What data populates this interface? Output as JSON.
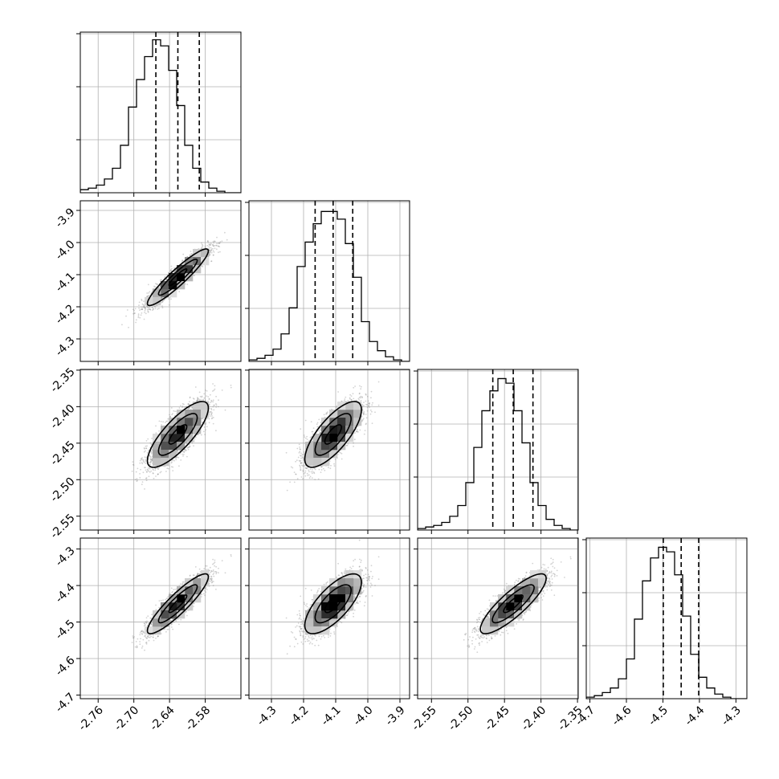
{
  "chart_data": {
    "type": "corner",
    "n_params": 4,
    "quantiles": [
      0.16,
      0.5,
      0.84
    ],
    "params": [
      {
        "ticks": [
          "-2.76",
          "-2.70",
          "-2.64",
          "-2.58"
        ],
        "tick_values": [
          -2.76,
          -2.7,
          -2.64,
          -2.58
        ],
        "range": [
          -2.79,
          -2.52
        ],
        "median": -2.626,
        "q16": -2.663,
        "q84": -2.59,
        "hist_counts": [
          0.02,
          0.03,
          0.05,
          0.09,
          0.16,
          0.31,
          0.56,
          0.74,
          0.89,
          1.0,
          0.96,
          0.8,
          0.57,
          0.31,
          0.16,
          0.07,
          0.03,
          0.01,
          0.0,
          0.0
        ]
      },
      {
        "ticks": [
          "-4.3",
          "-4.2",
          "-4.1",
          "-4.0",
          "-3.9"
        ],
        "tick_values": [
          -4.3,
          -4.2,
          -4.1,
          -4.0,
          -3.9
        ],
        "range": [
          -4.37,
          -3.87
        ],
        "median": -4.108,
        "q16": -4.164,
        "q84": -4.047,
        "hist_counts": [
          0.01,
          0.02,
          0.04,
          0.08,
          0.18,
          0.35,
          0.62,
          0.78,
          0.9,
          0.98,
          0.98,
          0.93,
          0.77,
          0.55,
          0.26,
          0.13,
          0.07,
          0.03,
          0.01,
          0.0
        ]
      },
      {
        "ticks": [
          "-2.55",
          "-2.50",
          "-2.45",
          "-2.40",
          "-2.35"
        ],
        "tick_values": [
          -2.55,
          -2.5,
          -2.45,
          -2.4,
          -2.35
        ],
        "range": [
          -2.569,
          -2.349
        ],
        "median": -2.438,
        "q16": -2.466,
        "q84": -2.411,
        "hist_counts": [
          0.01,
          0.02,
          0.03,
          0.05,
          0.09,
          0.16,
          0.31,
          0.54,
          0.78,
          0.91,
          0.99,
          0.96,
          0.78,
          0.57,
          0.31,
          0.16,
          0.07,
          0.03,
          0.01,
          0.0
        ]
      },
      {
        "ticks": [
          "-4.7",
          "-4.6",
          "-4.5",
          "-4.4",
          "-4.3"
        ],
        "tick_values": [
          -4.7,
          -4.6,
          -4.5,
          -4.4,
          -4.3
        ],
        "range": [
          -4.71,
          -4.27
        ],
        "median": -4.45,
        "q16": -4.499,
        "q84": -4.402,
        "hist_counts": [
          0.01,
          0.02,
          0.04,
          0.07,
          0.13,
          0.26,
          0.52,
          0.77,
          0.92,
          0.99,
          0.96,
          0.81,
          0.54,
          0.29,
          0.14,
          0.07,
          0.03,
          0.01,
          0.0,
          0.0
        ]
      }
    ],
    "pairs": [
      {
        "row": 1,
        "col": 0,
        "center": [
          -2.626,
          -4.108
        ],
        "sd": [
          0.025,
          0.043
        ],
        "rho": 0.93
      },
      {
        "row": 2,
        "col": 0,
        "center": [
          -2.626,
          -2.438
        ],
        "sd": [
          0.025,
          0.022
        ],
        "rho": 0.8
      },
      {
        "row": 2,
        "col": 1,
        "center": [
          -4.108,
          -2.438
        ],
        "sd": [
          0.043,
          0.022
        ],
        "rho": 0.75
      },
      {
        "row": 3,
        "col": 0,
        "center": [
          -2.626,
          -4.45
        ],
        "sd": [
          0.025,
          0.04
        ],
        "rho": 0.9
      },
      {
        "row": 3,
        "col": 1,
        "center": [
          -4.108,
          -4.45
        ],
        "sd": [
          0.043,
          0.04
        ],
        "rho": 0.72
      },
      {
        "row": 3,
        "col": 2,
        "center": [
          -2.438,
          -4.45
        ],
        "sd": [
          0.022,
          0.04
        ],
        "rho": 0.85
      }
    ],
    "grid": true,
    "colors": {
      "line": "#000000",
      "grid": "#b0b0b0",
      "points": "#808080"
    }
  }
}
